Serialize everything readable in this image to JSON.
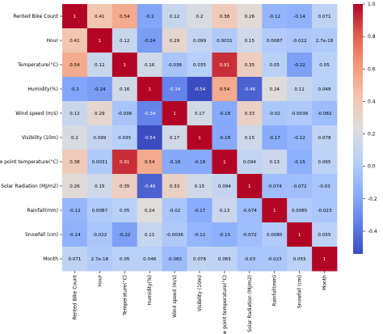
{
  "chart_data": {
    "type": "heatmap",
    "title": "",
    "xlabel": "",
    "ylabel": "",
    "labels": [
      "Rented Bike Count",
      "Hour",
      "Temperature(°C)",
      "Humidity(%)",
      "Wind speed (m/s)",
      "Visibility (10m)",
      "Dew point temperature(°C)",
      "Solar Radiation (MJ/m2)",
      "Rainfall(mm)",
      "Snowfall (cm)",
      "Month"
    ],
    "cells": [
      [
        "1",
        "0.41",
        "0.54",
        "-0.2",
        "0.12",
        "0.2",
        "0.38",
        "0.26",
        "-0.12",
        "-0.14",
        "0.071"
      ],
      [
        "0.41",
        "1",
        "0.12",
        "-0.24",
        "0.29",
        "0.099",
        "0.0031",
        "0.15",
        "0.0087",
        "-0.022",
        "2.7e-18"
      ],
      [
        "0.54",
        "0.12",
        "1",
        "0.16",
        "-0.036",
        "0.035",
        "0.91",
        "0.35",
        "0.05",
        "-0.22",
        "0.05"
      ],
      [
        "-0.2",
        "-0.24",
        "0.16",
        "1",
        "-0.34",
        "-0.54",
        "0.54",
        "-0.46",
        "0.24",
        "0.11",
        "0.048"
      ],
      [
        "0.12",
        "0.29",
        "-0.036",
        "-0.34",
        "1",
        "0.17",
        "-0.18",
        "0.33",
        "-0.02",
        "-0.0036",
        "-0.082"
      ],
      [
        "0.2",
        "0.099",
        "0.035",
        "-0.54",
        "0.17",
        "1",
        "-0.18",
        "0.15",
        "-0.17",
        "-0.12",
        "0.078"
      ],
      [
        "0.38",
        "0.0031",
        "0.91",
        "0.54",
        "-0.18",
        "-0.18",
        "1",
        "0.094",
        "0.13",
        "-0.15",
        "0.065"
      ],
      [
        "0.26",
        "0.15",
        "0.35",
        "-0.46",
        "0.33",
        "0.15",
        "0.094",
        "1",
        "-0.074",
        "-0.072",
        "-0.03"
      ],
      [
        "-0.12",
        "0.0087",
        "0.05",
        "0.24",
        "-0.02",
        "-0.17",
        "0.13",
        "-0.074",
        "1",
        "0.0085",
        "-0.023"
      ],
      [
        "-0.14",
        "-0.022",
        "-0.22",
        "0.11",
        "-0.0036",
        "-0.12",
        "-0.15",
        "-0.072",
        "0.0085",
        "1",
        "0.055"
      ],
      [
        "0.071",
        "2.7e-18",
        "0.05",
        "0.048",
        "-0.082",
        "0.078",
        "0.065",
        "-0.03",
        "-0.023",
        "0.055",
        "1"
      ]
    ],
    "colormap": "coolwarm",
    "vmin": -0.54,
    "vmax": 1.0,
    "colorbar": {
      "ticks": [
        "1.0",
        "0.8",
        "0.6",
        "0.4",
        "0.2",
        "0.0",
        "-0.2",
        "-0.4"
      ],
      "tick_values": [
        1.0,
        0.8,
        0.6,
        0.4,
        0.2,
        0.0,
        -0.2,
        -0.4
      ]
    },
    "grid": false,
    "legend": "colorbar-right"
  }
}
